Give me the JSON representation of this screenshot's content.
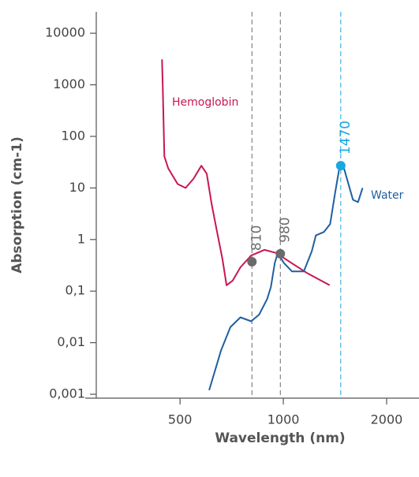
{
  "chart_data": {
    "type": "line",
    "y_label": "Absorption (cm-1)",
    "x_label": "Wavelength (nm)",
    "xscale": "log",
    "yscale": "log",
    "xlim": [
      285,
      2485
    ],
    "ylim": [
      0.00084,
      26000
    ],
    "xticks": [
      500,
      1000,
      2000
    ],
    "yticks": [
      {
        "value": 0.001,
        "label": "0,001"
      },
      {
        "value": 0.01,
        "label": "0,01"
      },
      {
        "value": 0.1,
        "label": "0,1"
      },
      1,
      10,
      100,
      1000,
      10000
    ],
    "series": [
      {
        "name": "Hemoglobin",
        "color": "#c8174f",
        "x": [
          443,
          445,
          450,
          462,
          492,
          519,
          547,
          577,
          598,
          618,
          641,
          665,
          683,
          712,
          750,
          806,
          881,
          953,
          1056,
          1177,
          1365
        ],
        "values": [
          3100,
          1000,
          41,
          24,
          11.9,
          10,
          15,
          27,
          18.9,
          4.9,
          1.4,
          0.41,
          0.13,
          0.16,
          0.29,
          0.49,
          0.63,
          0.55,
          0.35,
          0.22,
          0.13
        ]
      },
      {
        "name": "Water",
        "color": "#1f5fa0",
        "x": [
          608,
          658,
          701,
          750,
          806,
          850,
          897,
          920,
          944,
          963,
          1004,
          1060,
          1147,
          1210,
          1244,
          1313,
          1369,
          1417,
          1456,
          1495,
          1537,
          1595,
          1650,
          1702
        ],
        "values": [
          0.0012,
          0.007,
          0.02,
          0.031,
          0.026,
          0.035,
          0.07,
          0.12,
          0.35,
          0.55,
          0.35,
          0.24,
          0.24,
          0.59,
          1.2,
          1.4,
          2.0,
          8.4,
          24,
          27,
          14,
          5.9,
          5.3,
          10
        ]
      }
    ],
    "markers": [
      {
        "x": 810,
        "y": 0.37,
        "color": "#6b6b6b"
      },
      {
        "x": 980,
        "y": 0.53,
        "color": "#6b6b6b"
      },
      {
        "x": 1470,
        "y": 27,
        "color": "#1aa7e0"
      }
    ]
  }
}
